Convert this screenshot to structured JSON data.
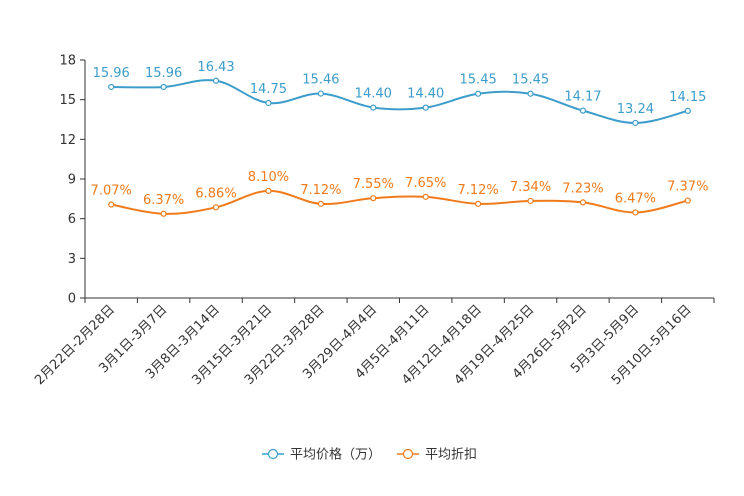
{
  "chart_data": {
    "type": "line",
    "title": "",
    "xlabel": "",
    "ylabel": "",
    "ylim": [
      0,
      18
    ],
    "yticks": [
      0,
      3,
      6,
      9,
      12,
      15,
      18
    ],
    "categories": [
      "2月22日-2月28日",
      "3月1日-3月7日",
      "3月8日-3月14日",
      "3月15日-3月21日",
      "3月22日-3月28日",
      "3月29日-4月4日",
      "4月5日-4月11日",
      "4月12日-4月18日",
      "4月19日-4月25日",
      "4月26日-5月2日",
      "5月3日-5月9日",
      "5月10日-5月16日"
    ],
    "series": [
      {
        "name": "平均价格（万）",
        "color": "#3c9dcb",
        "values": [
          15.96,
          15.96,
          16.43,
          14.75,
          15.46,
          14.4,
          14.4,
          15.45,
          15.45,
          14.17,
          13.24,
          14.15
        ],
        "labels": [
          "15.96",
          "15.96",
          "16.43",
          "14.75",
          "15.46",
          "14.40",
          "14.40",
          "15.45",
          "15.45",
          "14.17",
          "13.24",
          "14.15"
        ]
      },
      {
        "name": "平均折扣",
        "color": "#f07b1d",
        "values": [
          7.07,
          6.37,
          6.86,
          8.1,
          7.12,
          7.55,
          7.65,
          7.12,
          7.34,
          7.23,
          6.47,
          7.37
        ],
        "labels": [
          "7.07%",
          "6.37%",
          "6.86%",
          "8.10%",
          "7.12%",
          "7.55%",
          "7.65%",
          "7.12%",
          "7.34%",
          "7.23%",
          "6.47%",
          "7.37%"
        ]
      }
    ],
    "legend_position": "bottom-center",
    "grid": false
  }
}
